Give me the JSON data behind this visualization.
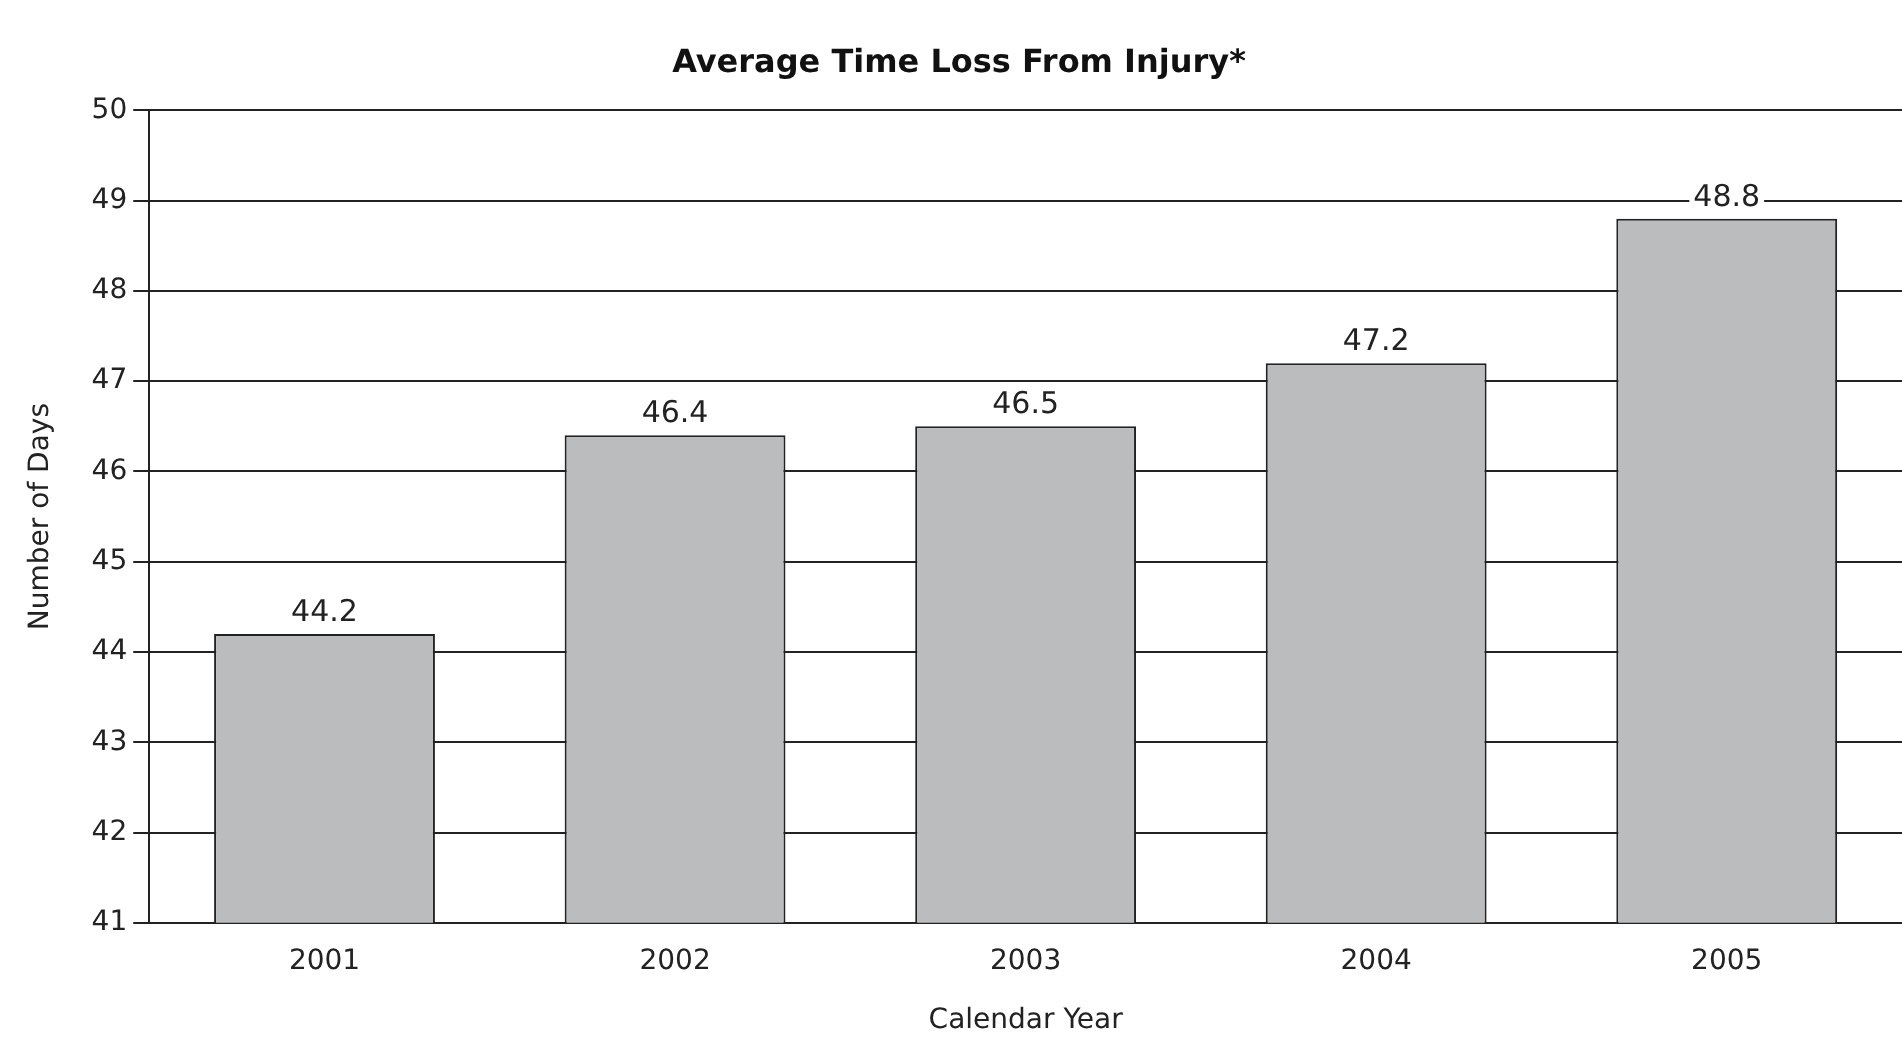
{
  "chart_data": {
    "type": "bar",
    "title": "Average Time Loss From Injury*",
    "xlabel": "Calendar Year",
    "ylabel": "Number of Days",
    "categories": [
      "2001",
      "2002",
      "2003",
      "2004",
      "2005"
    ],
    "values": [
      44.2,
      46.4,
      46.5,
      47.2,
      48.8
    ],
    "color": "#bbbcbe",
    "ylim": [
      41,
      50
    ],
    "yticks": [
      41,
      42,
      43,
      44,
      45,
      46,
      47,
      48,
      49,
      50
    ],
    "grid": "y",
    "data_labels": true,
    "legend": false
  }
}
